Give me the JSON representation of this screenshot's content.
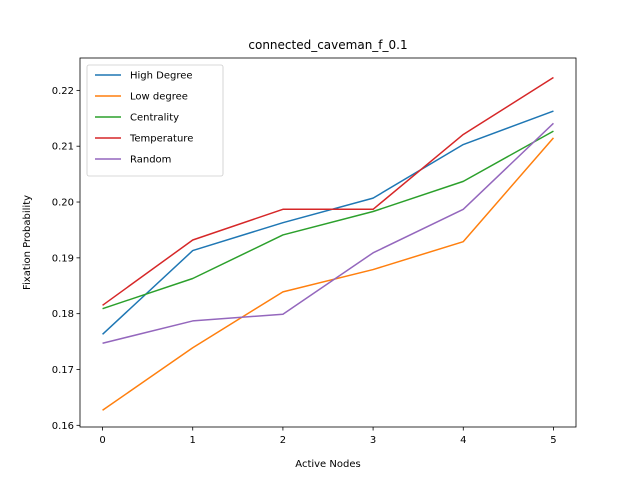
{
  "chart_data": {
    "type": "line",
    "title": "connected_caveman_f_0.1",
    "xlabel": "Active Nodes",
    "ylabel": "Fixation Probability",
    "x": [
      0,
      1,
      2,
      3,
      4,
      5
    ],
    "xlim": [
      -0.25,
      5.25
    ],
    "ylim": [
      0.1597,
      0.2258
    ],
    "xticks": [
      0,
      1,
      2,
      3,
      4,
      5
    ],
    "yticks": [
      0.16,
      0.17,
      0.18,
      0.19,
      0.2,
      0.21,
      0.22
    ],
    "ytick_labels": [
      "0.16",
      "0.17",
      "0.18",
      "0.19",
      "0.20",
      "0.21",
      "0.22"
    ],
    "grid": false,
    "legend_position": "top-left",
    "series": [
      {
        "name": "High Degree",
        "color": "#1f77b4",
        "values": [
          0.1763,
          0.1913,
          0.1963,
          0.2007,
          0.2103,
          0.2163
        ]
      },
      {
        "name": "Low degree",
        "color": "#ff7f0e",
        "values": [
          0.1627,
          0.1739,
          0.1839,
          0.1879,
          0.1929,
          0.2115
        ]
      },
      {
        "name": "Centrality",
        "color": "#2ca02c",
        "values": [
          0.1809,
          0.1863,
          0.1941,
          0.1983,
          0.2037,
          0.2127
        ]
      },
      {
        "name": "Temperature",
        "color": "#d62728",
        "values": [
          0.1815,
          0.1932,
          0.1987,
          0.1987,
          0.2121,
          0.2223
        ]
      },
      {
        "name": "Random",
        "color": "#9467bd",
        "values": [
          0.1747,
          0.1787,
          0.1799,
          0.1909,
          0.1987,
          0.2141
        ]
      }
    ]
  }
}
